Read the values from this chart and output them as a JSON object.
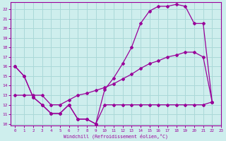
{
  "bg_color": "#ceeeed",
  "line_color": "#990099",
  "grid_color": "#aad8d8",
  "xlabel": "Windchill (Refroidissement éolien,°C)",
  "xlim": [
    -0.5,
    23
  ],
  "ylim": [
    9.8,
    22.7
  ],
  "yticks": [
    10,
    11,
    12,
    13,
    14,
    15,
    16,
    17,
    18,
    19,
    20,
    21,
    22
  ],
  "xticks": [
    0,
    1,
    2,
    3,
    4,
    5,
    6,
    7,
    8,
    9,
    10,
    11,
    12,
    13,
    14,
    15,
    16,
    17,
    18,
    19,
    20,
    21,
    22,
    23
  ],
  "series1_x": [
    0,
    1,
    2,
    3,
    4,
    5,
    6,
    7,
    8,
    9,
    10,
    11,
    12,
    13,
    14,
    15,
    16,
    17,
    18,
    19,
    20,
    21,
    22
  ],
  "series1_y": [
    16.0,
    15.0,
    12.8,
    12.0,
    11.1,
    11.1,
    12.0,
    10.5,
    10.5,
    10.0,
    13.6,
    14.8,
    16.3,
    18.0,
    20.5,
    21.8,
    22.3,
    22.3,
    22.5,
    22.3,
    20.5,
    20.5,
    12.3
  ],
  "series2_x": [
    0,
    1,
    2,
    3,
    4,
    5,
    6,
    7,
    8,
    9,
    10,
    11,
    12,
    13,
    14,
    15,
    16,
    17,
    18,
    19,
    20,
    21,
    22
  ],
  "series2_y": [
    13.0,
    13.0,
    13.0,
    13.0,
    12.0,
    12.0,
    12.5,
    13.0,
    13.2,
    13.5,
    13.8,
    14.2,
    14.7,
    15.2,
    15.8,
    16.3,
    16.6,
    17.0,
    17.2,
    17.5,
    17.5,
    17.0,
    12.3
  ],
  "series3_x": [
    0,
    1,
    2,
    3,
    4,
    5,
    6,
    7,
    8,
    9,
    10,
    11,
    12,
    13,
    14,
    15,
    16,
    17,
    18,
    19,
    20,
    21,
    22
  ],
  "series3_y": [
    16.0,
    15.0,
    12.8,
    12.0,
    11.1,
    11.1,
    12.0,
    10.5,
    10.5,
    10.0,
    12.0,
    12.0,
    12.0,
    12.0,
    12.0,
    12.0,
    12.0,
    12.0,
    12.0,
    12.0,
    12.0,
    12.0,
    12.3
  ],
  "font_family": "monospace"
}
